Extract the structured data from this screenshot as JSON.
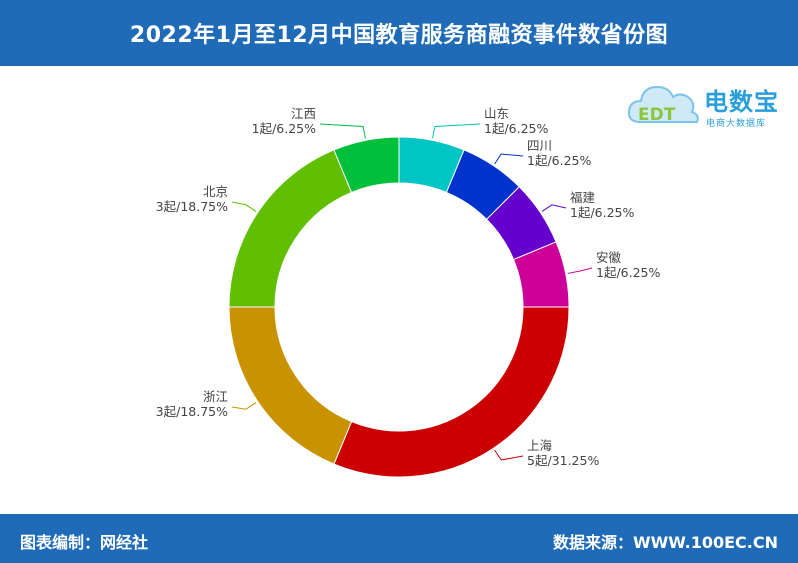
{
  "header": {
    "title": "2022年1月至12月中国教育服务商融资事件数省份图"
  },
  "footer": {
    "left": "图表编制：网经社",
    "right": "数据来源：WWW.100EC.CN"
  },
  "logo": {
    "text": "电数宝",
    "tagline": "电商大数据库",
    "mark": "EDT",
    "icon": "cloud-logo-icon"
  },
  "chart_data": {
    "type": "pie",
    "donut": true,
    "categories": [
      "山东",
      "四川",
      "福建",
      "安徽",
      "上海",
      "浙江",
      "北京",
      "江西"
    ],
    "values": [
      1,
      1,
      1,
      1,
      5,
      3,
      3,
      1
    ],
    "value_labels": [
      "1起/6.25%",
      "1起/6.25%",
      "1起/6.25%",
      "1起/6.25%",
      "5起/31.25%",
      "3起/18.75%",
      "3起/18.75%",
      "1起/6.25%"
    ],
    "colors": [
      "#00c5c5",
      "#0033cc",
      "#6600cc",
      "#cc0099",
      "#cc0000",
      "#c99200",
      "#5fbf00",
      "#00bf3b"
    ]
  }
}
